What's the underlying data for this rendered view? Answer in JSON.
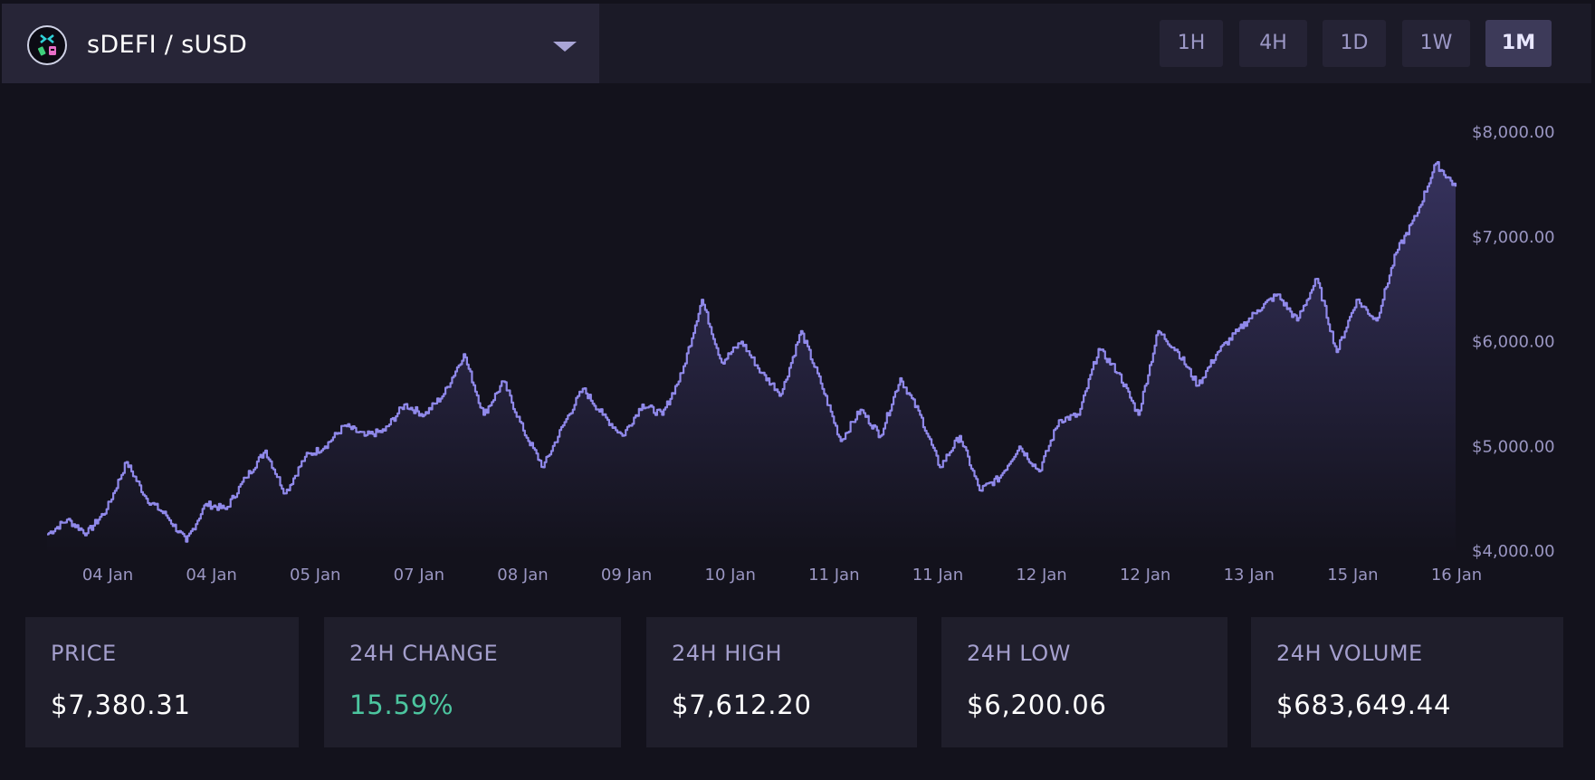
{
  "pair": {
    "label": "sDEFI / sUSD",
    "logo_icon": "sdefi-token-icon",
    "caret_icon": "caret-down-icon"
  },
  "timeframes": [
    {
      "label": "1H",
      "active": false
    },
    {
      "label": "4H",
      "active": false
    },
    {
      "label": "1D",
      "active": false
    },
    {
      "label": "1W",
      "active": false
    },
    {
      "label": "1M",
      "active": true
    }
  ],
  "colors": {
    "line": "#9089ea",
    "fill_top": "#6f66c8",
    "positive": "#4cc59f",
    "background": "#13121c"
  },
  "chart_data": {
    "type": "area",
    "title": "",
    "xlabel": "",
    "ylabel": "",
    "ylim": [
      4000,
      8000
    ],
    "y_ticks": [
      "$8,000.00",
      "$7,000.00",
      "$6,000.00",
      "$5,000.00",
      "$4,000.00"
    ],
    "x_ticks": [
      "04 Jan",
      "04 Jan",
      "05 Jan",
      "07 Jan",
      "08 Jan",
      "09 Jan",
      "10 Jan",
      "11 Jan",
      "11 Jan",
      "12 Jan",
      "12 Jan",
      "13 Jan",
      "15 Jan",
      "16 Jan"
    ],
    "grid": false,
    "series": [
      {
        "values": [
          4160,
          4300,
          4170,
          4400,
          4850,
          4500,
          4340,
          4090,
          4450,
          4400,
          4700,
          4960,
          4550,
          4900,
          5000,
          5200,
          5100,
          5150,
          5400,
          5300,
          5500,
          5880,
          5300,
          5620,
          5150,
          4800,
          5200,
          5550,
          5300,
          5100,
          5400,
          5300,
          5700,
          6400,
          5800,
          6000,
          5700,
          5500,
          6100,
          5600,
          5050,
          5350,
          5100,
          5650,
          5300,
          4800,
          5100,
          4580,
          4700,
          5000,
          4760,
          5250,
          5300,
          5930,
          5700,
          5300,
          6100,
          5900,
          5580,
          5900,
          6100,
          6300,
          6450,
          6200,
          6600,
          5900,
          6400,
          6200,
          6850,
          7200,
          7700,
          7480
        ]
      }
    ]
  },
  "stats": [
    {
      "label": "PRICE",
      "value": "$7,380.31"
    },
    {
      "label": "24H CHANGE",
      "value": "15.59%"
    },
    {
      "label": "24H HIGH",
      "value": "$7,612.20"
    },
    {
      "label": "24H LOW",
      "value": "$6,200.06"
    },
    {
      "label": "24H VOLUME",
      "value": "$683,649.44"
    }
  ]
}
